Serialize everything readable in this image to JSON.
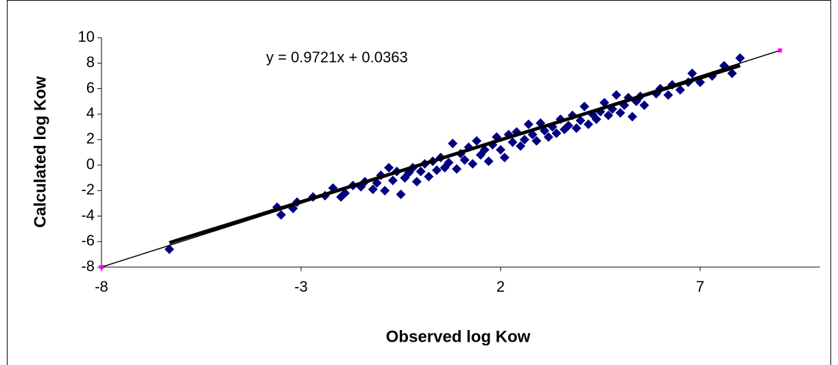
{
  "chart_data": {
    "type": "scatter",
    "annotation": "y = 0.9721x + 0.0363",
    "xlabel": "Observed log Kow",
    "ylabel": "Calculated log Kow",
    "xlim": [
      -8,
      10
    ],
    "xticks": [
      -8,
      -3,
      2,
      7
    ],
    "ylim": [
      -8,
      10
    ],
    "yticks": [
      -8,
      -6,
      -4,
      -2,
      0,
      2,
      4,
      6,
      8,
      10
    ],
    "series": [
      {
        "color": "#000080",
        "mode": "markers",
        "x": [
          -6.3,
          -3.6,
          -3.5,
          -3.2,
          -3.1,
          -2.7,
          -2.4,
          -2.2,
          -2.0,
          -1.9,
          -1.7,
          -1.5,
          -1.4,
          -1.2,
          -1.1,
          -1.0,
          -0.9,
          -0.8,
          -0.7,
          -0.6,
          -0.5,
          -0.4,
          -0.3,
          -0.2,
          -0.1,
          0.0,
          0.1,
          0.2,
          0.3,
          0.4,
          0.5,
          0.6,
          0.7,
          0.8,
          0.9,
          1.0,
          1.1,
          1.2,
          1.3,
          1.4,
          1.5,
          1.6,
          1.7,
          1.8,
          1.9,
          2.0,
          2.1,
          2.2,
          2.3,
          2.4,
          2.5,
          2.6,
          2.7,
          2.8,
          2.9,
          3.0,
          3.1,
          3.2,
          3.3,
          3.4,
          3.5,
          3.6,
          3.7,
          3.8,
          3.9,
          4.0,
          4.1,
          4.2,
          4.3,
          4.4,
          4.5,
          4.6,
          4.7,
          4.8,
          4.9,
          5.0,
          5.1,
          5.2,
          5.3,
          5.4,
          5.5,
          5.6,
          5.9,
          6.0,
          6.2,
          6.3,
          6.5,
          6.7,
          6.8,
          7.0,
          7.3,
          7.6,
          7.8,
          8.0
        ],
        "values": [
          -6.6,
          -3.3,
          -3.9,
          -3.4,
          -2.9,
          -2.5,
          -2.4,
          -1.8,
          -2.5,
          -2.2,
          -1.6,
          -1.7,
          -1.3,
          -1.9,
          -1.4,
          -0.8,
          -2.0,
          -0.2,
          -1.2,
          -0.5,
          -2.3,
          -1.0,
          -0.6,
          -0.2,
          -1.3,
          -0.5,
          0.1,
          -0.9,
          0.3,
          -0.4,
          0.6,
          -0.2,
          0.2,
          1.7,
          -0.3,
          0.9,
          0.4,
          1.4,
          0.1,
          1.9,
          0.8,
          1.2,
          0.3,
          1.6,
          2.2,
          1.2,
          0.6,
          2.4,
          1.8,
          2.6,
          1.5,
          2.0,
          3.2,
          2.4,
          1.9,
          3.3,
          2.7,
          2.2,
          3.0,
          2.5,
          3.6,
          2.8,
          3.1,
          3.9,
          2.9,
          3.5,
          4.6,
          3.2,
          4.0,
          3.6,
          4.2,
          4.9,
          3.9,
          4.4,
          5.5,
          4.1,
          4.7,
          5.3,
          3.8,
          5.0,
          5.4,
          4.7,
          5.6,
          6.0,
          5.5,
          6.3,
          5.9,
          6.5,
          7.2,
          6.5,
          7.0,
          7.8,
          7.2,
          8.4
        ]
      },
      {
        "color": "#000000",
        "mode": "thick-line",
        "x": [
          -6.3,
          8.0
        ],
        "values": [
          -6.09,
          7.81
        ]
      },
      {
        "color": "#ff00ff",
        "mode": "line-and-markers",
        "x": [
          -8,
          9
        ],
        "values": [
          -8,
          9
        ]
      }
    ]
  }
}
